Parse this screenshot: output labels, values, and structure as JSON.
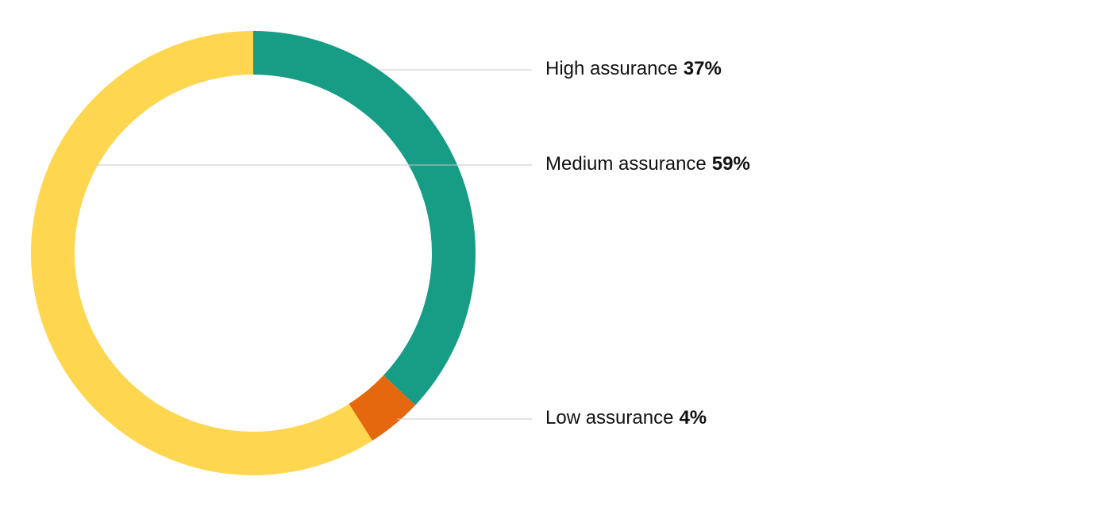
{
  "chart_data": {
    "type": "donut",
    "categories": [
      "High assurance",
      "Low assurance",
      "Medium assurance"
    ],
    "values": [
      37,
      4,
      59
    ],
    "value_labels": [
      "37%",
      "4%",
      "59%"
    ],
    "colors": [
      "#179c86",
      "#e5680e",
      "#fed650"
    ]
  }
}
